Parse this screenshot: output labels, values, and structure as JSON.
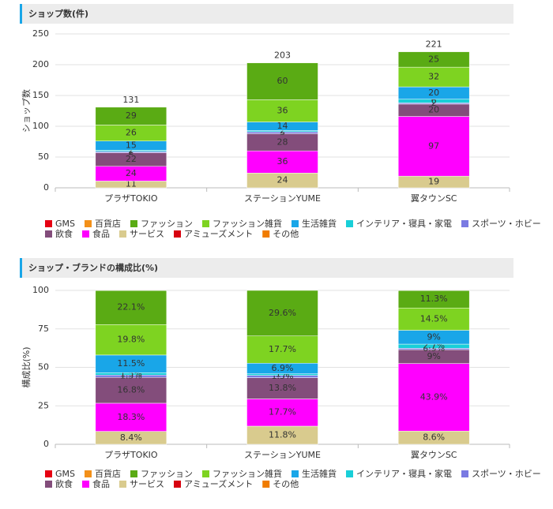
{
  "chart_data": [
    {
      "type": "bar",
      "stacked": true,
      "title": "ショップ数(件)",
      "y_label": "ショップ数",
      "categories": [
        "プラザTOKIO",
        "ステーションYUME",
        "翼タウンSC"
      ],
      "totals": [
        131,
        203,
        221
      ],
      "ylim": [
        0,
        250
      ],
      "yticks": [
        0,
        50,
        100,
        150,
        200,
        250
      ],
      "grid": true,
      "series": [
        {
          "name": "GMS",
          "color": "#e60012",
          "values": [
            0,
            0,
            0
          ]
        },
        {
          "name": "百貨店",
          "color": "#f39019",
          "values": [
            0,
            0,
            0
          ]
        },
        {
          "name": "ファッション",
          "color": "#5aab14",
          "values": [
            29,
            60,
            25
          ]
        },
        {
          "name": "ファッション雑貨",
          "color": "#7ed321",
          "values": [
            26,
            36,
            32
          ]
        },
        {
          "name": "生活雑貨",
          "color": "#19a6e8",
          "values": [
            15,
            14,
            20
          ]
        },
        {
          "name": "インテリア・寝具・家電",
          "color": "#19cfd8",
          "values": [
            2,
            2,
            6
          ]
        },
        {
          "name": "スポーツ・ホビー",
          "color": "#7a7ae2",
          "values": [
            2,
            3,
            2
          ]
        },
        {
          "name": "飲食",
          "color": "#834d7b",
          "values": [
            22,
            28,
            20
          ]
        },
        {
          "name": "食品",
          "color": "#ff00ff",
          "values": [
            24,
            36,
            97
          ]
        },
        {
          "name": "サービス",
          "color": "#d9cb8e",
          "values": [
            11,
            24,
            19
          ]
        },
        {
          "name": "アミューズメント",
          "color": "#d7000f",
          "values": [
            0,
            0,
            0
          ]
        },
        {
          "name": "その他",
          "color": "#f07c00",
          "values": [
            0,
            0,
            0
          ]
        }
      ]
    },
    {
      "type": "bar",
      "stacked": true,
      "title": "ショップ・ブランドの構成比(%)",
      "y_label": "構成比(%)",
      "categories": [
        "プラザTOKIO",
        "ステーションYUME",
        "翼タウンSC"
      ],
      "ylim": [
        0,
        100
      ],
      "yticks": [
        0,
        25,
        50,
        75,
        100
      ],
      "grid": true,
      "series": [
        {
          "name": "GMS",
          "color": "#e60012",
          "values": [
            0,
            0,
            0
          ]
        },
        {
          "name": "百貨店",
          "color": "#f39019",
          "values": [
            0,
            0,
            0
          ]
        },
        {
          "name": "ファッション",
          "color": "#5aab14",
          "values": [
            22.1,
            29.6,
            11.3
          ],
          "value_labels": [
            "22.1%",
            "29.6%",
            "11.3%"
          ]
        },
        {
          "name": "ファッション雑貨",
          "color": "#7ed321",
          "values": [
            19.8,
            17.7,
            14.5
          ],
          "value_labels": [
            "19.8%",
            "17.7%",
            "14.5%"
          ]
        },
        {
          "name": "生活雑貨",
          "color": "#19a6e8",
          "values": [
            11.5,
            6.9,
            9
          ],
          "value_labels": [
            "11.5%",
            "6.9%",
            "9%"
          ]
        },
        {
          "name": "インテリア・寝具・家電",
          "color": "#19cfd8",
          "values": [
            1.5,
            1,
            2.7
          ],
          "value_labels": [
            "1.5%",
            "1%",
            "2.7%"
          ]
        },
        {
          "name": "スポーツ・ホビー",
          "color": "#7a7ae2",
          "values": [
            1.5,
            1.5,
            0.9
          ],
          "value_labels": [
            "1.5%",
            "1.5%",
            "0.9%"
          ]
        },
        {
          "name": "飲食",
          "color": "#834d7b",
          "values": [
            16.8,
            13.8,
            9
          ],
          "value_labels": [
            "16.8%",
            "13.8%",
            "9%"
          ]
        },
        {
          "name": "食品",
          "color": "#ff00ff",
          "values": [
            18.3,
            17.7,
            43.9
          ],
          "value_labels": [
            "18.3%",
            "17.7%",
            "43.9%"
          ]
        },
        {
          "name": "サービス",
          "color": "#d9cb8e",
          "values": [
            8.4,
            11.8,
            8.6
          ],
          "value_labels": [
            "8.4%",
            "11.8%",
            "8.6%"
          ]
        },
        {
          "name": "アミューズメント",
          "color": "#d7000f",
          "values": [
            0,
            0,
            0
          ]
        },
        {
          "name": "その他",
          "color": "#f07c00",
          "values": [
            0,
            0,
            0
          ]
        }
      ]
    }
  ]
}
